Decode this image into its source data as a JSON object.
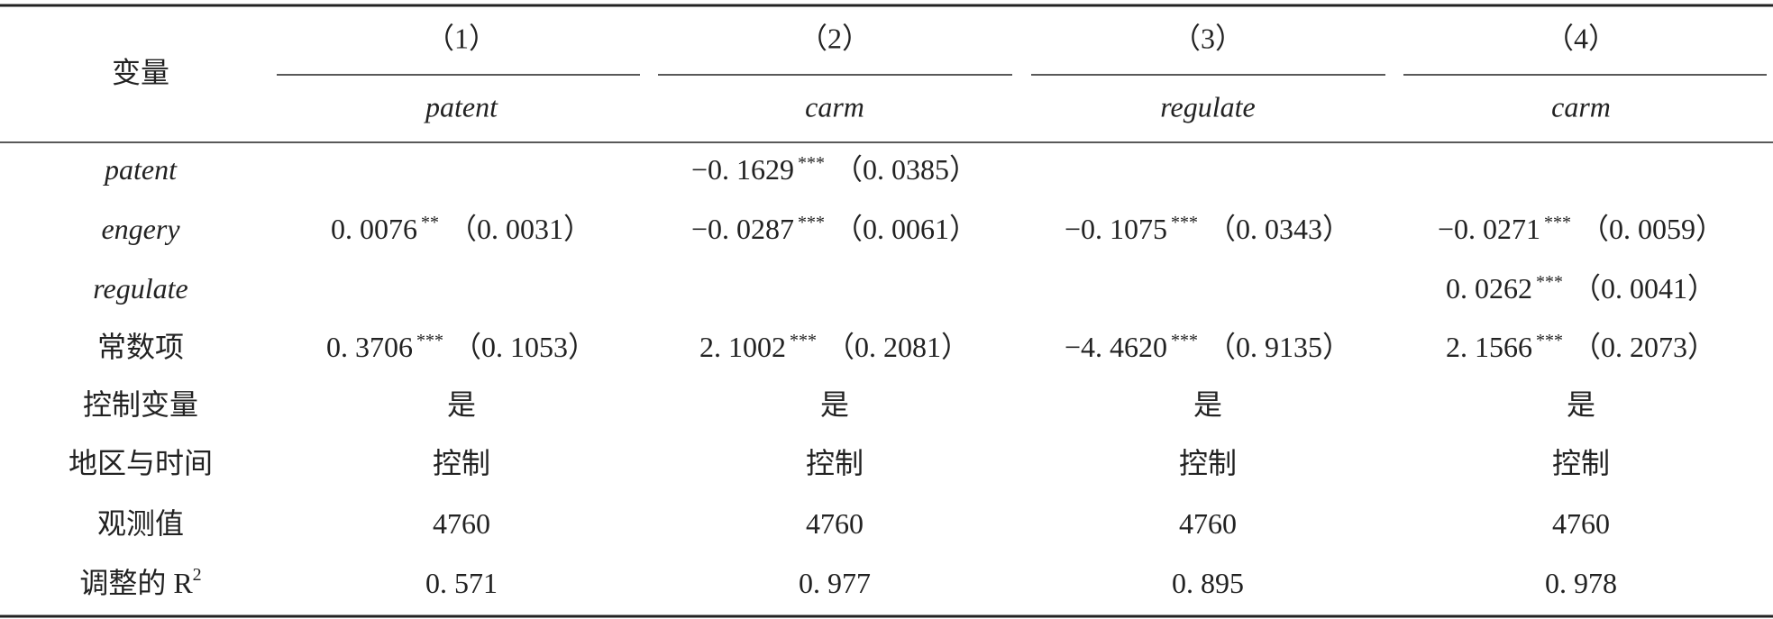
{
  "header": {
    "variable": "变量",
    "columns": [
      "（1）",
      "（2）",
      "（3）",
      "（4）"
    ],
    "dependent": [
      "patent",
      "carm",
      "regulate",
      "carm"
    ]
  },
  "rows": [
    {
      "label": "patent",
      "italic": true,
      "cells": [
        null,
        {
          "coef": "−0. 1629",
          "stars": "***",
          "se": "（0. 0385）"
        },
        null,
        null
      ]
    },
    {
      "label": "engery",
      "italic": true,
      "cells": [
        {
          "coef": "0. 0076",
          "stars": "**",
          "se": "（0. 0031）"
        },
        {
          "coef": "−0. 0287",
          "stars": "***",
          "se": "（0. 0061）"
        },
        {
          "coef": "−0. 1075",
          "stars": "***",
          "se": "（0. 0343）"
        },
        {
          "coef": "−0. 0271",
          "stars": "***",
          "se": "（0. 0059）"
        }
      ]
    },
    {
      "label": "regulate",
      "italic": true,
      "cells": [
        null,
        null,
        null,
        {
          "coef": "0. 0262",
          "stars": "***",
          "se": "（0. 0041）"
        }
      ]
    },
    {
      "label": "常数项",
      "cells": [
        {
          "coef": "0. 3706",
          "stars": "***",
          "se": "（0. 1053）"
        },
        {
          "coef": "2. 1002",
          "stars": "***",
          "se": "（0. 2081）"
        },
        {
          "coef": "−4. 4620",
          "stars": "***",
          "se": "（0. 9135）"
        },
        {
          "coef": "2. 1566",
          "stars": "***",
          "se": "（0. 2073）"
        }
      ]
    },
    {
      "label": "控制变量",
      "cells": [
        {
          "coef": "是"
        },
        {
          "coef": "是"
        },
        {
          "coef": "是"
        },
        {
          "coef": "是"
        }
      ]
    },
    {
      "label": "地区与时间",
      "cells": [
        {
          "coef": "控制"
        },
        {
          "coef": "控制"
        },
        {
          "coef": "控制"
        },
        {
          "coef": "控制"
        }
      ]
    },
    {
      "label": "观测值",
      "cells": [
        {
          "coef": "4760"
        },
        {
          "coef": "4760"
        },
        {
          "coef": "4760"
        },
        {
          "coef": "4760"
        }
      ]
    },
    {
      "label": "调整的 R",
      "label_sup": "2",
      "cells": [
        {
          "coef": "0. 571"
        },
        {
          "coef": "0. 977"
        },
        {
          "coef": "0. 895"
        },
        {
          "coef": "0. 978"
        }
      ]
    }
  ]
}
